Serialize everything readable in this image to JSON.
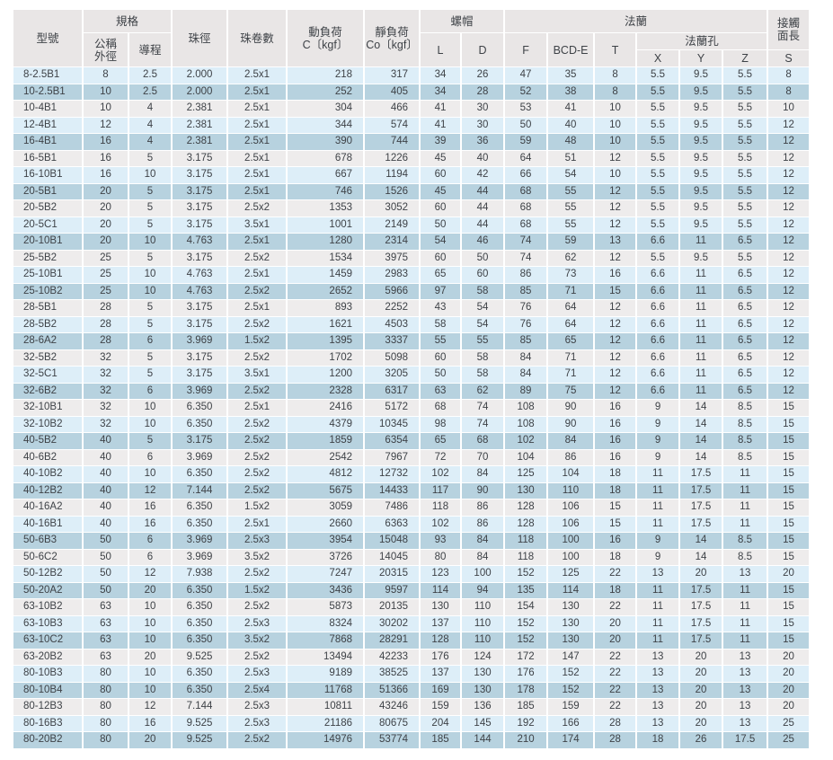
{
  "colors": {
    "row_light_blue": "#ddeef8",
    "row_dark_blue": "#b7d2df",
    "row_gray": "#eeecec",
    "header_bg": "#e9e6e6",
    "text": "#3e4247",
    "grid": "#ffffff"
  },
  "table": {
    "header": {
      "model": "型號",
      "spec_group": "規格",
      "outer_dia_l1": "公稱",
      "outer_dia_l2": "外徑",
      "lead": "導程",
      "ball_dia": "珠徑",
      "ball_circuits": "珠卷數",
      "dyn_l1": "動負荷",
      "dyn_l2": "C〔kgf〕",
      "stat_l1": "靜負荷",
      "stat_l2": "Co〔kgf〕",
      "nut_group": "螺帽",
      "nut_l": "L",
      "nut_d": "D",
      "flange_group": "法蘭",
      "flange_f": "F",
      "flange_bcd": "BCD-E",
      "flange_t": "T",
      "holes_group": "法蘭孔",
      "hole_x": "X",
      "hole_y": "Y",
      "hole_z": "Z",
      "contact_l1": "接觸",
      "contact_l2": "面長",
      "contact_s": "S"
    },
    "columns": [
      "型號",
      "公稱外徑",
      "導程",
      "珠徑",
      "珠卷數",
      "動負荷 C〔kgf〕",
      "靜負荷 Co〔kgf〕",
      "L",
      "D",
      "F",
      "BCD-E",
      "T",
      "X",
      "Y",
      "Z",
      "S"
    ],
    "rows": [
      [
        "8-2.5B1",
        "8",
        "2.5",
        "2.000",
        "2.5x1",
        "218",
        "317",
        "34",
        "26",
        "47",
        "35",
        "8",
        "5.5",
        "9.5",
        "5.5",
        "8"
      ],
      [
        "10-2.5B1",
        "10",
        "2.5",
        "2.000",
        "2.5x1",
        "252",
        "405",
        "34",
        "28",
        "52",
        "38",
        "8",
        "5.5",
        "9.5",
        "5.5",
        "8"
      ],
      [
        "10-4B1",
        "10",
        "4",
        "2.381",
        "2.5x1",
        "304",
        "466",
        "41",
        "30",
        "53",
        "41",
        "10",
        "5.5",
        "9.5",
        "5.5",
        "10"
      ],
      [
        "12-4B1",
        "12",
        "4",
        "2.381",
        "2.5x1",
        "344",
        "574",
        "41",
        "30",
        "50",
        "40",
        "10",
        "5.5",
        "9.5",
        "5.5",
        "12"
      ],
      [
        "16-4B1",
        "16",
        "4",
        "2.381",
        "2.5x1",
        "390",
        "744",
        "39",
        "36",
        "59",
        "48",
        "10",
        "5.5",
        "9.5",
        "5.5",
        "12"
      ],
      [
        "16-5B1",
        "16",
        "5",
        "3.175",
        "2.5x1",
        "678",
        "1226",
        "45",
        "40",
        "64",
        "51",
        "12",
        "5.5",
        "9.5",
        "5.5",
        "12"
      ],
      [
        "16-10B1",
        "16",
        "10",
        "3.175",
        "2.5x1",
        "667",
        "1194",
        "60",
        "42",
        "66",
        "54",
        "10",
        "5.5",
        "9.5",
        "5.5",
        "12"
      ],
      [
        "20-5B1",
        "20",
        "5",
        "3.175",
        "2.5x1",
        "746",
        "1526",
        "45",
        "44",
        "68",
        "55",
        "12",
        "5.5",
        "9.5",
        "5.5",
        "12"
      ],
      [
        "20-5B2",
        "20",
        "5",
        "3.175",
        "2.5x2",
        "1353",
        "3052",
        "60",
        "44",
        "68",
        "55",
        "12",
        "5.5",
        "9.5",
        "5.5",
        "12"
      ],
      [
        "20-5C1",
        "20",
        "5",
        "3.175",
        "3.5x1",
        "1001",
        "2149",
        "50",
        "44",
        "68",
        "55",
        "12",
        "5.5",
        "9.5",
        "5.5",
        "12"
      ],
      [
        "20-10B1",
        "20",
        "10",
        "4.763",
        "2.5x1",
        "1280",
        "2314",
        "54",
        "46",
        "74",
        "59",
        "13",
        "6.6",
        "11",
        "6.5",
        "12"
      ],
      [
        "25-5B2",
        "25",
        "5",
        "3.175",
        "2.5x2",
        "1534",
        "3975",
        "60",
        "50",
        "74",
        "62",
        "12",
        "5.5",
        "9.5",
        "5.5",
        "12"
      ],
      [
        "25-10B1",
        "25",
        "10",
        "4.763",
        "2.5x1",
        "1459",
        "2983",
        "65",
        "60",
        "86",
        "73",
        "16",
        "6.6",
        "11",
        "6.5",
        "12"
      ],
      [
        "25-10B2",
        "25",
        "10",
        "4.763",
        "2.5x2",
        "2652",
        "5966",
        "97",
        "58",
        "85",
        "71",
        "15",
        "6.6",
        "11",
        "6.5",
        "12"
      ],
      [
        "28-5B1",
        "28",
        "5",
        "3.175",
        "2.5x1",
        "893",
        "2252",
        "43",
        "54",
        "76",
        "64",
        "12",
        "6.6",
        "11",
        "6.5",
        "12"
      ],
      [
        "28-5B2",
        "28",
        "5",
        "3.175",
        "2.5x2",
        "1621",
        "4503",
        "58",
        "54",
        "76",
        "64",
        "12",
        "6.6",
        "11",
        "6.5",
        "12"
      ],
      [
        "28-6A2",
        "28",
        "6",
        "3.969",
        "1.5x2",
        "1395",
        "3337",
        "55",
        "55",
        "85",
        "65",
        "12",
        "6.6",
        "11",
        "6.5",
        "12"
      ],
      [
        "32-5B2",
        "32",
        "5",
        "3.175",
        "2.5x2",
        "1702",
        "5098",
        "60",
        "58",
        "84",
        "71",
        "12",
        "6.6",
        "11",
        "6.5",
        "12"
      ],
      [
        "32-5C1",
        "32",
        "5",
        "3.175",
        "3.5x1",
        "1200",
        "3205",
        "50",
        "58",
        "84",
        "71",
        "12",
        "6.6",
        "11",
        "6.5",
        "12"
      ],
      [
        "32-6B2",
        "32",
        "6",
        "3.969",
        "2.5x2",
        "2328",
        "6317",
        "63",
        "62",
        "89",
        "75",
        "12",
        "6.6",
        "11",
        "6.5",
        "12"
      ],
      [
        "32-10B1",
        "32",
        "10",
        "6.350",
        "2.5x1",
        "2416",
        "5172",
        "68",
        "74",
        "108",
        "90",
        "16",
        "9",
        "14",
        "8.5",
        "15"
      ],
      [
        "32-10B2",
        "32",
        "10",
        "6.350",
        "2.5x2",
        "4379",
        "10345",
        "98",
        "74",
        "108",
        "90",
        "16",
        "9",
        "14",
        "8.5",
        "15"
      ],
      [
        "40-5B2",
        "40",
        "5",
        "3.175",
        "2.5x2",
        "1859",
        "6354",
        "65",
        "68",
        "102",
        "84",
        "16",
        "9",
        "14",
        "8.5",
        "15"
      ],
      [
        "40-6B2",
        "40",
        "6",
        "3.969",
        "2.5x2",
        "2542",
        "7967",
        "72",
        "70",
        "104",
        "86",
        "16",
        "9",
        "14",
        "8.5",
        "15"
      ],
      [
        "40-10B2",
        "40",
        "10",
        "6.350",
        "2.5x2",
        "4812",
        "12732",
        "102",
        "84",
        "125",
        "104",
        "18",
        "11",
        "17.5",
        "11",
        "15"
      ],
      [
        "40-12B2",
        "40",
        "12",
        "7.144",
        "2.5x2",
        "5675",
        "14433",
        "117",
        "90",
        "130",
        "110",
        "18",
        "11",
        "17.5",
        "11",
        "15"
      ],
      [
        "40-16A2",
        "40",
        "16",
        "6.350",
        "1.5x2",
        "3059",
        "7486",
        "118",
        "86",
        "128",
        "106",
        "15",
        "11",
        "17.5",
        "11",
        "15"
      ],
      [
        "40-16B1",
        "40",
        "16",
        "6.350",
        "2.5x1",
        "2660",
        "6363",
        "102",
        "86",
        "128",
        "106",
        "15",
        "11",
        "17.5",
        "11",
        "15"
      ],
      [
        "50-6B3",
        "50",
        "6",
        "3.969",
        "2.5x3",
        "3954",
        "15048",
        "93",
        "84",
        "118",
        "100",
        "16",
        "9",
        "14",
        "8.5",
        "15"
      ],
      [
        "50-6C2",
        "50",
        "6",
        "3.969",
        "3.5x2",
        "3726",
        "14045",
        "80",
        "84",
        "118",
        "100",
        "18",
        "9",
        "14",
        "8.5",
        "15"
      ],
      [
        "50-12B2",
        "50",
        "12",
        "7.938",
        "2.5x2",
        "7247",
        "20315",
        "123",
        "100",
        "152",
        "125",
        "22",
        "13",
        "20",
        "13",
        "20"
      ],
      [
        "50-20A2",
        "50",
        "20",
        "6.350",
        "1.5x2",
        "3436",
        "9597",
        "114",
        "94",
        "135",
        "114",
        "18",
        "11",
        "17.5",
        "11",
        "15"
      ],
      [
        "63-10B2",
        "63",
        "10",
        "6.350",
        "2.5x2",
        "5873",
        "20135",
        "130",
        "110",
        "154",
        "130",
        "22",
        "11",
        "17.5",
        "11",
        "15"
      ],
      [
        "63-10B3",
        "63",
        "10",
        "6.350",
        "2.5x3",
        "8324",
        "30202",
        "137",
        "110",
        "152",
        "130",
        "20",
        "11",
        "17.5",
        "11",
        "15"
      ],
      [
        "63-10C2",
        "63",
        "10",
        "6.350",
        "3.5x2",
        "7868",
        "28291",
        "128",
        "110",
        "152",
        "130",
        "20",
        "11",
        "17.5",
        "11",
        "15"
      ],
      [
        "63-20B2",
        "63",
        "20",
        "9.525",
        "2.5x2",
        "13494",
        "42233",
        "176",
        "124",
        "172",
        "147",
        "22",
        "13",
        "20",
        "13",
        "20"
      ],
      [
        "80-10B3",
        "80",
        "10",
        "6.350",
        "2.5x3",
        "9189",
        "38525",
        "137",
        "130",
        "176",
        "152",
        "22",
        "13",
        "20",
        "13",
        "20"
      ],
      [
        "80-10B4",
        "80",
        "10",
        "6.350",
        "2.5x4",
        "11768",
        "51366",
        "169",
        "130",
        "178",
        "152",
        "22",
        "13",
        "20",
        "13",
        "20"
      ],
      [
        "80-12B3",
        "80",
        "12",
        "7.144",
        "2.5x3",
        "10811",
        "43246",
        "159",
        "136",
        "185",
        "159",
        "22",
        "13",
        "20",
        "13",
        "20"
      ],
      [
        "80-16B3",
        "80",
        "16",
        "9.525",
        "2.5x3",
        "21186",
        "80675",
        "204",
        "145",
        "192",
        "166",
        "28",
        "13",
        "20",
        "13",
        "25"
      ],
      [
        "80-20B2",
        "80",
        "20",
        "9.525",
        "2.5x2",
        "14976",
        "53774",
        "185",
        "144",
        "210",
        "174",
        "28",
        "18",
        "26",
        "17.5",
        "25"
      ]
    ]
  }
}
